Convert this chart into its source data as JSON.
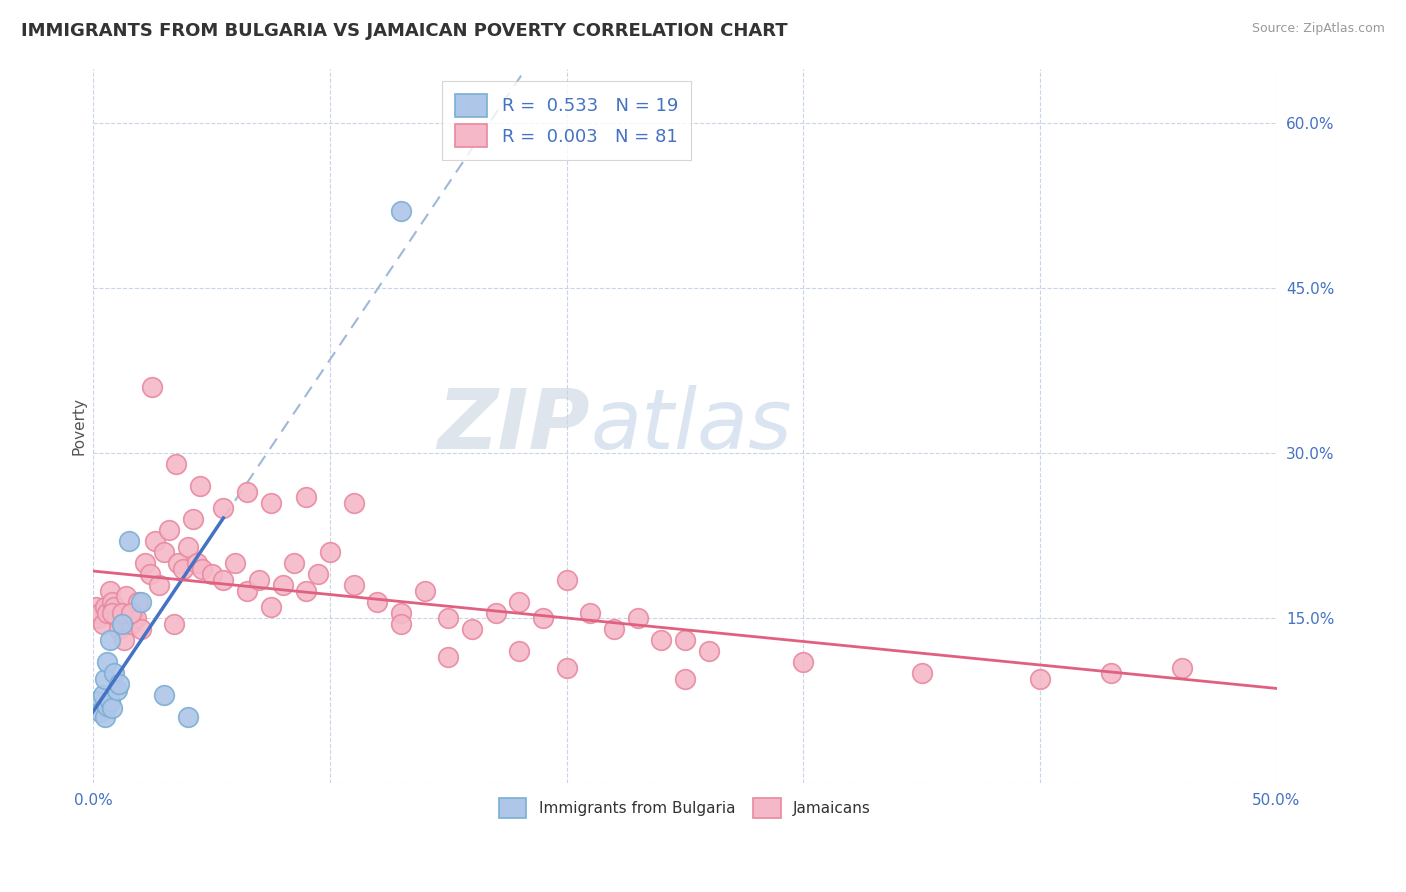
{
  "title": "IMMIGRANTS FROM BULGARIA VS JAMAICAN POVERTY CORRELATION CHART",
  "source": "Source: ZipAtlas.com",
  "ylabel": "Poverty",
  "xlim": [
    0.0,
    0.5
  ],
  "ylim": [
    0.0,
    0.65
  ],
  "xticks": [
    0.0,
    0.1,
    0.2,
    0.3,
    0.4,
    0.5
  ],
  "yticks": [
    0.0,
    0.15,
    0.3,
    0.45,
    0.6
  ],
  "ytick_labels": [
    "",
    "15.0%",
    "30.0%",
    "45.0%",
    "60.0%"
  ],
  "xtick_labels": [
    "0.0%",
    "",
    "",
    "",
    "",
    "50.0%"
  ],
  "bulgaria_color": "#aec6e8",
  "jamaica_color": "#f4b8c8",
  "bulgaria_edge": "#7baed4",
  "jamaica_edge": "#e8899e",
  "trendline_bulgaria_color": "#4472c4",
  "trendline_jamaica_color": "#e06080",
  "dashed_line_color": "#a0b8d8",
  "R_bulgaria": 0.533,
  "N_bulgaria": 19,
  "R_jamaica": 0.003,
  "N_jamaica": 81,
  "watermark_zip": "ZIP",
  "watermark_atlas": "atlas",
  "legend_labels": [
    "Immigrants from Bulgaria",
    "Jamaicans"
  ],
  "bulgaria_x": [
    0.002,
    0.003,
    0.004,
    0.005,
    0.005,
    0.006,
    0.006,
    0.007,
    0.007,
    0.008,
    0.009,
    0.01,
    0.011,
    0.012,
    0.015,
    0.02,
    0.03,
    0.04,
    0.13
  ],
  "bulgaria_y": [
    0.075,
    0.065,
    0.08,
    0.06,
    0.095,
    0.07,
    0.11,
    0.075,
    0.13,
    0.068,
    0.1,
    0.085,
    0.09,
    0.145,
    0.22,
    0.165,
    0.08,
    0.06,
    0.52
  ],
  "jamaica_x": [
    0.001,
    0.002,
    0.003,
    0.004,
    0.005,
    0.006,
    0.007,
    0.008,
    0.009,
    0.01,
    0.011,
    0.012,
    0.013,
    0.014,
    0.015,
    0.016,
    0.017,
    0.018,
    0.019,
    0.02,
    0.022,
    0.024,
    0.026,
    0.028,
    0.03,
    0.032,
    0.034,
    0.036,
    0.038,
    0.04,
    0.042,
    0.044,
    0.046,
    0.05,
    0.055,
    0.06,
    0.065,
    0.07,
    0.075,
    0.08,
    0.085,
    0.09,
    0.095,
    0.1,
    0.11,
    0.12,
    0.13,
    0.14,
    0.15,
    0.16,
    0.17,
    0.18,
    0.19,
    0.2,
    0.21,
    0.22,
    0.23,
    0.24,
    0.25,
    0.26,
    0.025,
    0.035,
    0.045,
    0.055,
    0.065,
    0.075,
    0.09,
    0.11,
    0.13,
    0.15,
    0.18,
    0.2,
    0.25,
    0.3,
    0.35,
    0.4,
    0.43,
    0.46,
    0.008,
    0.012,
    0.016
  ],
  "jamaica_y": [
    0.16,
    0.15,
    0.155,
    0.145,
    0.16,
    0.155,
    0.175,
    0.165,
    0.16,
    0.15,
    0.14,
    0.155,
    0.13,
    0.17,
    0.15,
    0.145,
    0.155,
    0.15,
    0.165,
    0.14,
    0.2,
    0.19,
    0.22,
    0.18,
    0.21,
    0.23,
    0.145,
    0.2,
    0.195,
    0.215,
    0.24,
    0.2,
    0.195,
    0.19,
    0.185,
    0.2,
    0.175,
    0.185,
    0.16,
    0.18,
    0.2,
    0.175,
    0.19,
    0.21,
    0.18,
    0.165,
    0.155,
    0.175,
    0.15,
    0.14,
    0.155,
    0.165,
    0.15,
    0.185,
    0.155,
    0.14,
    0.15,
    0.13,
    0.13,
    0.12,
    0.36,
    0.29,
    0.27,
    0.25,
    0.265,
    0.255,
    0.26,
    0.255,
    0.145,
    0.115,
    0.12,
    0.105,
    0.095,
    0.11,
    0.1,
    0.095,
    0.1,
    0.105,
    0.155,
    0.155,
    0.155
  ]
}
